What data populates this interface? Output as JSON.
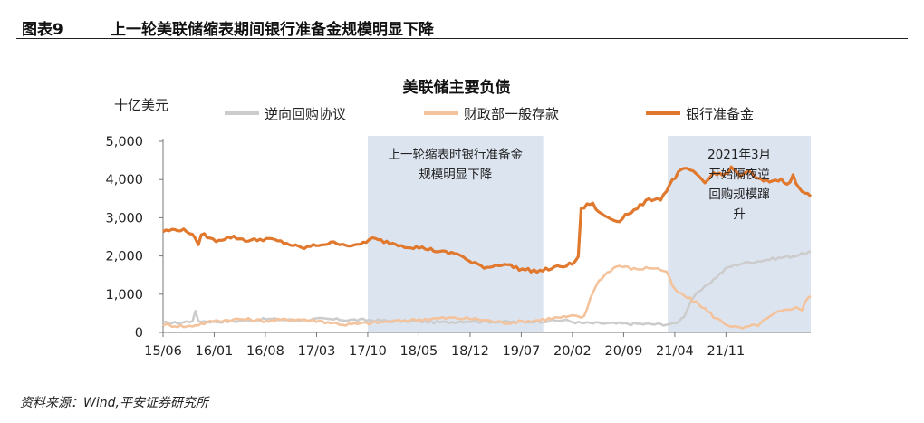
{
  "figure": {
    "number": "图表9",
    "title": "上一轮美联储缩表期间银行准备金规模明显下降",
    "source": "资料来源：Wind,平安证券研究所"
  },
  "chart_data": {
    "type": "line",
    "title": "美联储主要负债",
    "ylabel": "十亿美元",
    "ylim": [
      0,
      5000
    ],
    "yticks": [
      0,
      1000,
      2000,
      3000,
      4000,
      5000
    ],
    "ytick_labels": [
      "0",
      "1,000",
      "2,000",
      "3,000",
      "4,000",
      "5,000"
    ],
    "xlim": [
      2015.417,
      2022.8
    ],
    "xticks": [
      2015.417,
      2016.0,
      2016.583,
      2017.167,
      2017.75,
      2018.333,
      2018.917,
      2019.5,
      2020.083,
      2020.667,
      2021.25,
      2021.833
    ],
    "xtick_labels": [
      "15/06",
      "16/01",
      "16/08",
      "17/03",
      "17/10",
      "18/05",
      "18/12",
      "19/07",
      "20/02",
      "20/09",
      "21/04",
      "21/11"
    ],
    "legend_position": "top",
    "series": [
      {
        "name": "逆向回购协议",
        "color": "#cccccc",
        "x": [
          2015.42,
          2015.6,
          2015.75,
          2015.8,
          2015.82,
          2016.0,
          2016.3,
          2016.6,
          2016.9,
          2017.2,
          2017.5,
          2017.8,
          2018.0,
          2018.3,
          2018.6,
          2018.9,
          2019.2,
          2019.5,
          2019.8,
          2020.0,
          2020.15,
          2020.3,
          2020.6,
          2020.9,
          2021.1,
          2021.25,
          2021.35,
          2021.45,
          2021.55,
          2021.7,
          2021.85,
          2022.0,
          2022.3,
          2022.6,
          2022.8
        ],
        "y": [
          250,
          250,
          300,
          620,
          300,
          280,
          300,
          350,
          320,
          350,
          330,
          320,
          300,
          290,
          260,
          300,
          280,
          270,
          300,
          320,
          250,
          240,
          230,
          220,
          210,
          220,
          400,
          900,
          1100,
          1400,
          1700,
          1800,
          1900,
          2000,
          2100
        ]
      },
      {
        "name": "财政部一般存款",
        "color": "#f4c39c",
        "x": [
          2015.42,
          2015.7,
          2016.0,
          2016.3,
          2016.6,
          2016.9,
          2017.2,
          2017.5,
          2017.8,
          2018.1,
          2018.4,
          2018.7,
          2019.0,
          2019.3,
          2019.6,
          2019.9,
          2020.1,
          2020.22,
          2020.3,
          2020.4,
          2020.5,
          2020.6,
          2020.8,
          2021.0,
          2021.15,
          2021.25,
          2021.4,
          2021.55,
          2021.7,
          2021.85,
          2022.0,
          2022.2,
          2022.4,
          2022.6,
          2022.7,
          2022.75,
          2022.8
        ],
        "y": [
          200,
          150,
          300,
          350,
          300,
          350,
          300,
          200,
          250,
          300,
          350,
          380,
          350,
          250,
          300,
          380,
          420,
          400,
          1000,
          1400,
          1600,
          1750,
          1650,
          1700,
          1600,
          1100,
          900,
          700,
          400,
          200,
          100,
          200,
          500,
          650,
          600,
          900,
          950
        ]
      },
      {
        "name": "银行准备金",
        "color": "#e0782e",
        "x": [
          2015.42,
          2015.6,
          2015.75,
          2015.82,
          2015.85,
          2016.0,
          2016.2,
          2016.4,
          2016.6,
          2016.8,
          2017.0,
          2017.2,
          2017.4,
          2017.6,
          2017.8,
          2018.0,
          2018.2,
          2018.4,
          2018.6,
          2018.8,
          2018.9,
          2019.1,
          2019.3,
          2019.5,
          2019.7,
          2019.9,
          2020.1,
          2020.15,
          2020.18,
          2020.23,
          2020.3,
          2020.4,
          2020.5,
          2020.6,
          2020.7,
          2020.8,
          2020.9,
          2021.0,
          2021.1,
          2021.2,
          2021.3,
          2021.4,
          2021.5,
          2021.6,
          2021.7,
          2021.8,
          2021.9,
          2022.0,
          2022.1,
          2022.2,
          2022.3,
          2022.45,
          2022.55,
          2022.6,
          2022.65,
          2022.7,
          2022.75,
          2022.8
        ],
        "y": [
          2650,
          2700,
          2600,
          2250,
          2600,
          2400,
          2500,
          2400,
          2450,
          2350,
          2200,
          2300,
          2350,
          2250,
          2450,
          2350,
          2250,
          2200,
          2100,
          2050,
          1850,
          1700,
          1800,
          1650,
          1600,
          1700,
          1800,
          2000,
          3200,
          3300,
          3400,
          3100,
          3000,
          2900,
          3100,
          3200,
          3400,
          3500,
          3500,
          3900,
          4200,
          4300,
          4100,
          3900,
          4200,
          4100,
          4300,
          4100,
          4200,
          4000,
          3950,
          4000,
          3900,
          4100,
          3800,
          3700,
          3600,
          3600
        ]
      }
    ],
    "shaded_regions": [
      {
        "x_start": 2017.75,
        "x_end": 2019.75,
        "label_lines": [
          "上一轮缩表时银行准备金",
          "规模明显下降"
        ]
      },
      {
        "x_start": 2021.17,
        "x_end": 2022.8,
        "label_lines": [
          "2021年3月",
          "开始隔夜逆",
          "回购规模蹿",
          "升"
        ]
      }
    ]
  }
}
